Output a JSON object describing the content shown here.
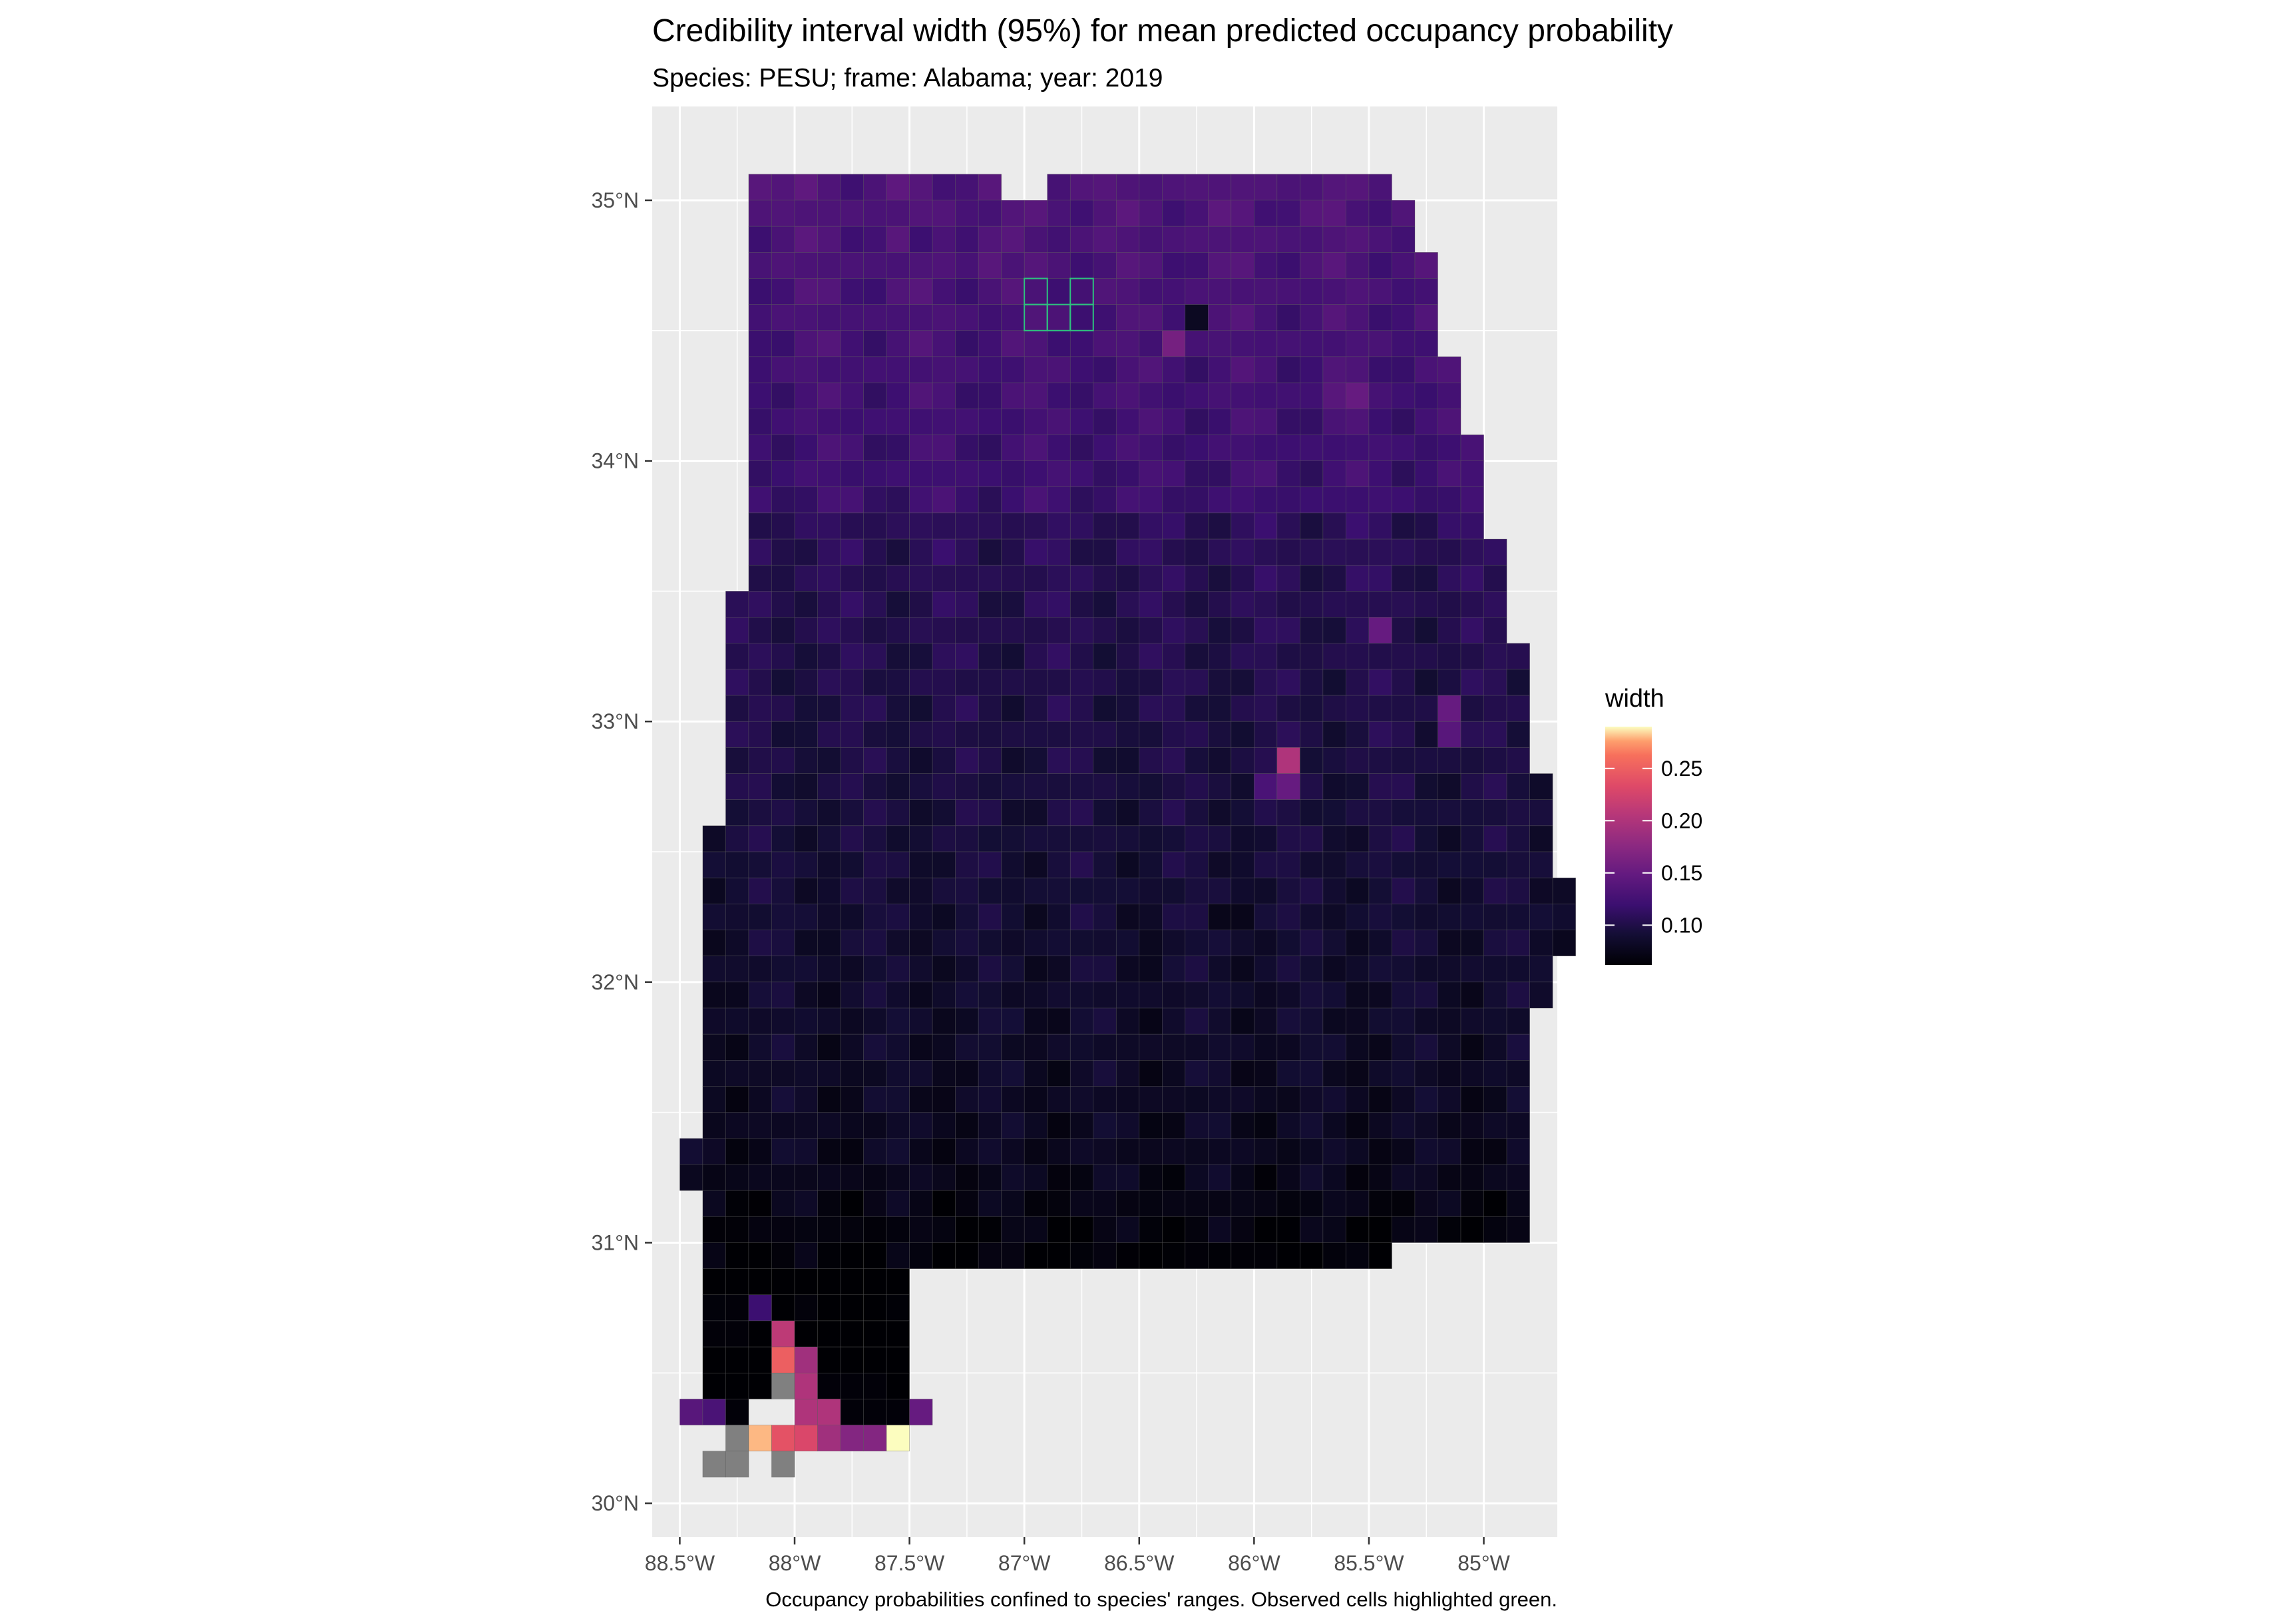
{
  "chart_data": {
    "type": "heatmap",
    "title": "Credibility interval width (95%) for mean predicted occupancy probability",
    "subtitle": "Species: PESU; frame: Alabama; year: 2019",
    "caption": "Occupancy probabilities confined to species' ranges. Observed cells highlighted green.",
    "x_axis": {
      "ticks": [
        -88.5,
        -88.0,
        -87.5,
        -87.0,
        -86.5,
        -86.0,
        -85.5,
        -85.0
      ],
      "tick_labels": [
        "88.5°W",
        "88°W",
        "87.5°W",
        "87°W",
        "86.5°W",
        "86°W",
        "85.5°W",
        "85°W"
      ],
      "range": [
        -88.62,
        -84.68
      ]
    },
    "y_axis": {
      "ticks": [
        30,
        31,
        32,
        33,
        34,
        35
      ],
      "tick_labels": [
        "30°N",
        "31°N",
        "32°N",
        "33°N",
        "34°N",
        "35°N"
      ],
      "range": [
        29.87,
        35.36
      ]
    },
    "legend": {
      "title": "width",
      "position": "right",
      "range": [
        0.062,
        0.29
      ],
      "ticks": [
        0.1,
        0.15,
        0.2,
        0.25
      ],
      "tick_labels": [
        "0.10",
        "0.15",
        "0.20",
        "0.25"
      ],
      "colormap": "magma"
    },
    "grid": true,
    "cell_size_deg": [
      0.1,
      0.1
    ],
    "cells_note": "approximate gridded values read from the map",
    "base_value": 0.095,
    "outline_rows": [
      {
        "lat": 35.05,
        "lon_start": -88.2,
        "lon_end": -87.1
      },
      {
        "lat": 35.05,
        "lon_start": -86.9,
        "lon_end": -85.4
      },
      {
        "lat": 34.95,
        "lon_start": -88.2,
        "lon_end": -85.3
      },
      {
        "lat": 34.85,
        "lon_start": -88.2,
        "lon_end": -85.3
      },
      {
        "lat": 34.75,
        "lon_start": -88.2,
        "lon_end": -85.2
      },
      {
        "lat": 34.65,
        "lon_start": -88.2,
        "lon_end": -85.2
      },
      {
        "lat": 34.55,
        "lon_start": -88.2,
        "lon_end": -85.2
      },
      {
        "lat": 34.45,
        "lon_start": -88.2,
        "lon_end": -85.2
      },
      {
        "lat": 34.35,
        "lon_start": -88.2,
        "lon_end": -85.1
      },
      {
        "lat": 34.25,
        "lon_start": -88.2,
        "lon_end": -85.1
      },
      {
        "lat": 34.15,
        "lon_start": -88.2,
        "lon_end": -85.1
      },
      {
        "lat": 34.05,
        "lon_start": -88.2,
        "lon_end": -85.0
      },
      {
        "lat": 33.95,
        "lon_start": -88.2,
        "lon_end": -85.0
      },
      {
        "lat": 33.85,
        "lon_start": -88.2,
        "lon_end": -85.0
      },
      {
        "lat": 33.75,
        "lon_start": -88.2,
        "lon_end": -85.0
      },
      {
        "lat": 33.65,
        "lon_start": -88.2,
        "lon_end": -84.9
      },
      {
        "lat": 33.55,
        "lon_start": -88.2,
        "lon_end": -84.9
      },
      {
        "lat": 33.45,
        "lon_start": -88.3,
        "lon_end": -84.9
      },
      {
        "lat": 33.35,
        "lon_start": -88.3,
        "lon_end": -84.9
      },
      {
        "lat": 33.25,
        "lon_start": -88.3,
        "lon_end": -84.8
      },
      {
        "lat": 33.15,
        "lon_start": -88.3,
        "lon_end": -84.8
      },
      {
        "lat": 33.05,
        "lon_start": -88.3,
        "lon_end": -84.8
      },
      {
        "lat": 32.95,
        "lon_start": -88.3,
        "lon_end": -84.8
      },
      {
        "lat": 32.85,
        "lon_start": -88.3,
        "lon_end": -84.8
      },
      {
        "lat": 32.75,
        "lon_start": -88.3,
        "lon_end": -84.7
      },
      {
        "lat": 32.65,
        "lon_start": -88.3,
        "lon_end": -84.7
      },
      {
        "lat": 32.55,
        "lon_start": -88.4,
        "lon_end": -84.7
      },
      {
        "lat": 32.45,
        "lon_start": -88.4,
        "lon_end": -84.7
      },
      {
        "lat": 32.35,
        "lon_start": -88.4,
        "lon_end": -84.6
      },
      {
        "lat": 32.25,
        "lon_start": -88.4,
        "lon_end": -84.6
      },
      {
        "lat": 32.15,
        "lon_start": -88.4,
        "lon_end": -84.6
      },
      {
        "lat": 32.05,
        "lon_start": -88.4,
        "lon_end": -84.7
      },
      {
        "lat": 31.95,
        "lon_start": -88.4,
        "lon_end": -84.7
      },
      {
        "lat": 31.85,
        "lon_start": -88.4,
        "lon_end": -84.8
      },
      {
        "lat": 31.75,
        "lon_start": -88.4,
        "lon_end": -84.8
      },
      {
        "lat": 31.65,
        "lon_start": -88.4,
        "lon_end": -84.8
      },
      {
        "lat": 31.55,
        "lon_start": -88.4,
        "lon_end": -84.8
      },
      {
        "lat": 31.45,
        "lon_start": -88.4,
        "lon_end": -84.8
      },
      {
        "lat": 31.35,
        "lon_start": -88.5,
        "lon_end": -84.8
      },
      {
        "lat": 31.25,
        "lon_start": -88.5,
        "lon_end": -84.8
      },
      {
        "lat": 31.15,
        "lon_start": -88.4,
        "lon_end": -84.8
      },
      {
        "lat": 31.05,
        "lon_start": -88.4,
        "lon_end": -84.8
      },
      {
        "lat": 30.95,
        "lon_start": -88.4,
        "lon_end": -86.4
      },
      {
        "lat": 30.95,
        "lon_start": -86.4,
        "lon_end": -85.4
      },
      {
        "lat": 30.85,
        "lon_start": -88.4,
        "lon_end": -87.5
      },
      {
        "lat": 30.75,
        "lon_start": -88.4,
        "lon_end": -87.5
      },
      {
        "lat": 30.65,
        "lon_start": -88.4,
        "lon_end": -87.5
      },
      {
        "lat": 30.55,
        "lon_start": -88.4,
        "lon_end": -87.5
      },
      {
        "lat": 30.45,
        "lon_start": -88.4,
        "lon_end": -87.5
      }
    ],
    "special_cells": [
      {
        "lon": -88.15,
        "lat": 35.05,
        "v": 0.14
      },
      {
        "lon": -87.45,
        "lat": 34.85,
        "v": 0.12
      },
      {
        "lon": -87.35,
        "lat": 34.85,
        "v": 0.13
      },
      {
        "lon": -87.15,
        "lat": 34.75,
        "v": 0.14
      },
      {
        "lon": -87.05,
        "lat": 34.75,
        "v": 0.13
      },
      {
        "lon": -86.35,
        "lat": 34.45,
        "v": 0.16
      },
      {
        "lon": -86.25,
        "lat": 34.55,
        "v": 0.08
      },
      {
        "lon": -85.65,
        "lat": 34.25,
        "v": 0.14
      },
      {
        "lon": -85.55,
        "lat": 34.25,
        "v": 0.15
      },
      {
        "lon": -85.45,
        "lat": 33.35,
        "v": 0.15
      },
      {
        "lon": -85.15,
        "lat": 33.05,
        "v": 0.15
      },
      {
        "lon": -85.15,
        "lat": 32.95,
        "v": 0.14
      },
      {
        "lon": -85.85,
        "lat": 32.85,
        "v": 0.2
      },
      {
        "lon": -85.95,
        "lat": 32.75,
        "v": 0.13
      },
      {
        "lon": -85.85,
        "lat": 32.75,
        "v": 0.15
      },
      {
        "lon": -86.15,
        "lat": 32.25,
        "v": 0.075
      },
      {
        "lon": -86.05,
        "lat": 32.25,
        "v": 0.075
      },
      {
        "lon": -86.45,
        "lat": 32.15,
        "v": 0.078
      },
      {
        "lon": -87.95,
        "lat": 31.05,
        "v": 0.07
      },
      {
        "lon": -88.25,
        "lat": 30.75,
        "v": 0.065
      },
      {
        "lon": -88.35,
        "lat": 30.65,
        "v": 0.065
      },
      {
        "lon": -88.25,
        "lat": 30.65,
        "v": 0.065
      },
      {
        "lon": -88.15,
        "lat": 30.75,
        "v": 0.12
      },
      {
        "lon": -88.05,
        "lat": 30.65,
        "v": 0.21
      },
      {
        "lon": -88.05,
        "lat": 30.55,
        "v": 0.25
      },
      {
        "lon": -88.05,
        "lat": 30.45,
        "v": 0.26
      },
      {
        "lon": -87.95,
        "lat": 30.55,
        "v": 0.19
      },
      {
        "lon": -87.95,
        "lat": 30.45,
        "v": 0.2
      },
      {
        "lon": -87.85,
        "lat": 30.45,
        "v": 0.065
      },
      {
        "lon": -87.75,
        "lat": 30.45,
        "v": 0.065
      },
      {
        "lon": -87.65,
        "lat": 30.45,
        "v": 0.065
      },
      {
        "lon": -88.45,
        "lat": 30.35,
        "v": 0.14
      },
      {
        "lon": -88.35,
        "lat": 30.35,
        "v": 0.13
      },
      {
        "lon": -88.25,
        "lat": 30.35,
        "v": 0.065
      },
      {
        "lon": -87.95,
        "lat": 30.35,
        "v": 0.2
      },
      {
        "lon": -87.85,
        "lat": 30.35,
        "v": 0.2
      },
      {
        "lon": -87.75,
        "lat": 30.35,
        "v": 0.065
      },
      {
        "lon": -87.65,
        "lat": 30.35,
        "v": 0.065
      },
      {
        "lon": -87.55,
        "lat": 30.35,
        "v": 0.065
      },
      {
        "lon": -87.45,
        "lat": 30.35,
        "v": 0.15
      },
      {
        "lon": -88.25,
        "lat": 30.25,
        "v": 0.27
      },
      {
        "lon": -88.15,
        "lat": 30.25,
        "v": 0.28
      },
      {
        "lon": -88.05,
        "lat": 30.25,
        "v": 0.24
      },
      {
        "lon": -87.95,
        "lat": 30.25,
        "v": 0.23
      },
      {
        "lon": -87.85,
        "lat": 30.25,
        "v": 0.19
      },
      {
        "lon": -87.75,
        "lat": 30.25,
        "v": 0.17
      },
      {
        "lon": -87.65,
        "lat": 30.25,
        "v": 0.17
      },
      {
        "lon": -87.55,
        "lat": 30.25,
        "v": 0.29
      }
    ],
    "na_cells": [
      {
        "lon": -88.05,
        "lat": 30.45
      },
      {
        "lon": -88.25,
        "lat": 30.25
      },
      {
        "lon": -88.35,
        "lat": 30.15
      },
      {
        "lon": -88.25,
        "lat": 30.15
      },
      {
        "lon": -88.05,
        "lat": 30.15
      }
    ],
    "observed_cells": [
      {
        "lon": -86.95,
        "lat": 34.55
      },
      {
        "lon": -86.85,
        "lat": 34.55
      },
      {
        "lon": -86.75,
        "lat": 34.55
      },
      {
        "lon": -86.95,
        "lat": 34.65
      },
      {
        "lon": -86.75,
        "lat": 34.65
      }
    ],
    "colors": {
      "panel_background": "#ebebeb",
      "grid_line": "#ffffff",
      "na_fill": "#808080",
      "observed_outline": "#2ec27e",
      "cell_outline": "#5a5a5a"
    }
  }
}
